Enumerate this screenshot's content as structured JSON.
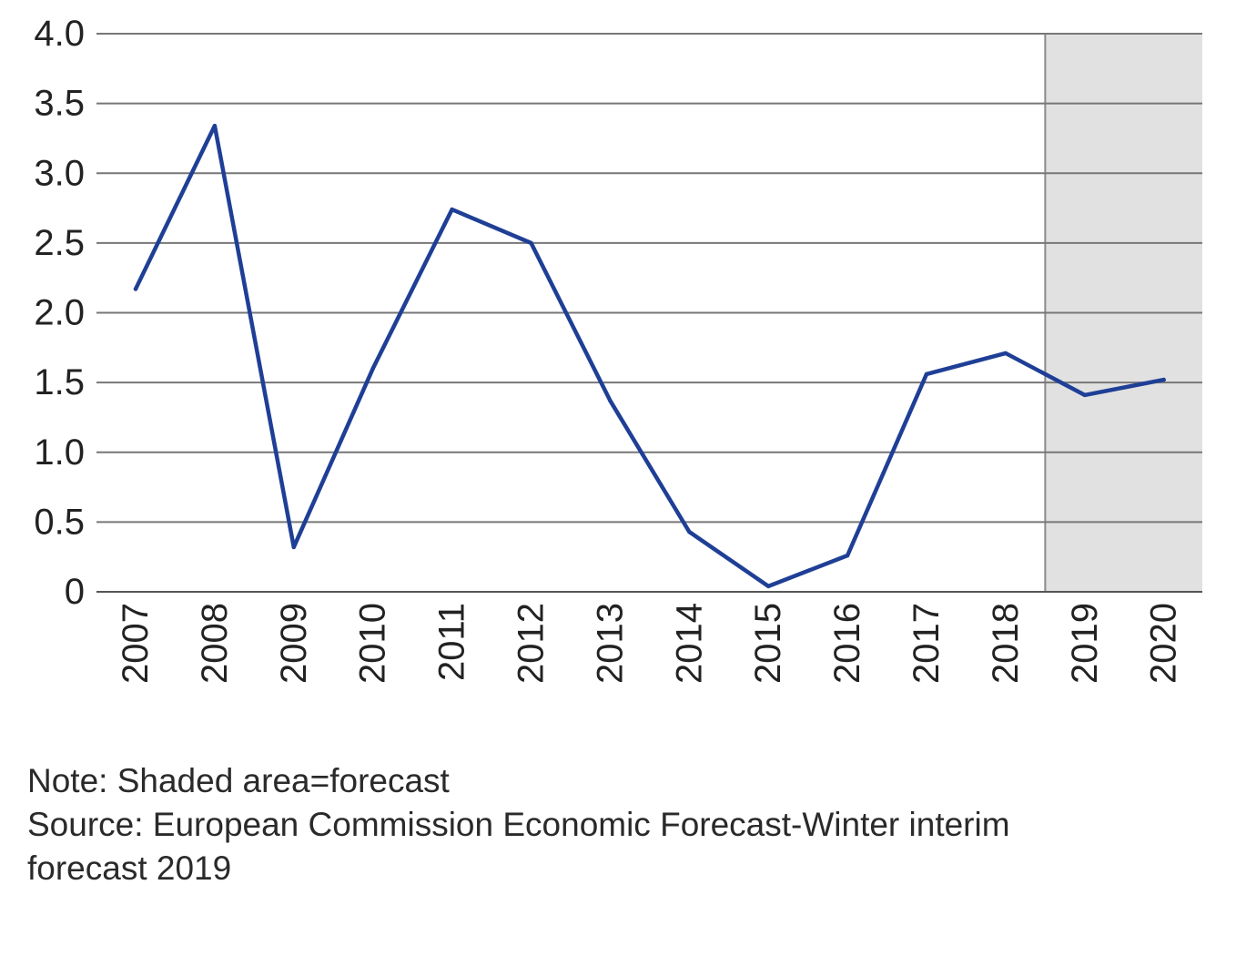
{
  "chart_data": {
    "type": "line",
    "categories": [
      "2007",
      "2008",
      "2009",
      "2010",
      "2011",
      "2012",
      "2013",
      "2014",
      "2015",
      "2016",
      "2017",
      "2018",
      "2019",
      "2020"
    ],
    "series": [
      {
        "values": [
          2.17,
          3.34,
          0.32,
          1.6,
          2.74,
          2.5,
          1.37,
          0.43,
          0.04,
          0.26,
          1.56,
          1.71,
          1.41,
          1.52
        ]
      }
    ],
    "ylim": [
      0,
      4
    ],
    "yticks": [
      0,
      0.5,
      1.0,
      1.5,
      2.0,
      2.5,
      3.0,
      3.5,
      4.0
    ],
    "ytick_labels": [
      "0",
      "0.5",
      "1.0",
      "1.5",
      "2.0",
      "2.5",
      "3.0",
      "3.5",
      "4.0"
    ],
    "forecast_shaded_from": "2019",
    "grid": "horizontal",
    "colors": {
      "line": "#1f3f96",
      "grid": "#777777",
      "shade": "#e1e1e1",
      "axis": "#555555"
    }
  },
  "notes": {
    "note": "Note: Shaded area=forecast",
    "source": "Source: European Commission Economic Forecast-Winter interim\nforecast 2019"
  }
}
